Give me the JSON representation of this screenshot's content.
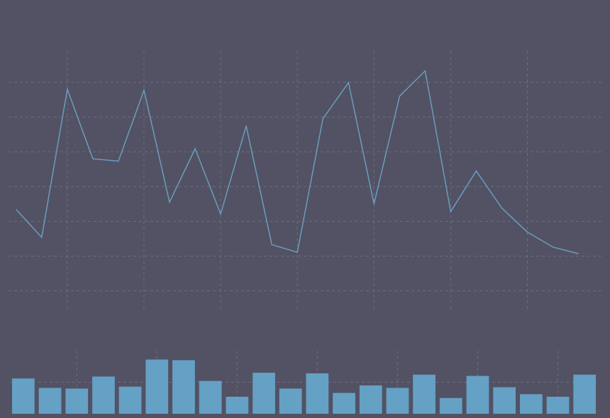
{
  "colors": {
    "background": "#525264",
    "grid": "#6c6c84",
    "line": "#6a9dbd",
    "bar": "#65a1c4"
  },
  "chart_data": [
    {
      "type": "line",
      "grid": true,
      "x": [
        0,
        1,
        2,
        3,
        4,
        5,
        6,
        7,
        8,
        9,
        10,
        11,
        12,
        13,
        14,
        15,
        16,
        17,
        18,
        19,
        20,
        21,
        22
      ],
      "series": [
        {
          "values": [
            2.34,
            1.54,
            5.8,
            3.8,
            3.73,
            5.77,
            2.55,
            4.09,
            2.21,
            4.75,
            1.33,
            1.11,
            4.95,
            5.99,
            2.5,
            5.6,
            6.33,
            2.28,
            3.45,
            2.38,
            1.69,
            1.26,
            1.07
          ]
        }
      ],
      "xlim": [
        -0.3,
        22.9
      ],
      "ylim": [
        -0.6,
        6.9
      ]
    },
    {
      "type": "bar",
      "grid": true,
      "categories": [
        "0",
        "1",
        "2",
        "3",
        "4",
        "5",
        "6",
        "7",
        "8",
        "9",
        "10",
        "11",
        "12",
        "13",
        "14",
        "15",
        "16",
        "17",
        "18",
        "19",
        "20",
        "21"
      ],
      "values": [
        56,
        41,
        40,
        59,
        43,
        86,
        85,
        52,
        27,
        65,
        40,
        64,
        33,
        45,
        41,
        62,
        25,
        60,
        42,
        31,
        27,
        62
      ],
      "ylim": [
        0,
        100
      ]
    }
  ]
}
